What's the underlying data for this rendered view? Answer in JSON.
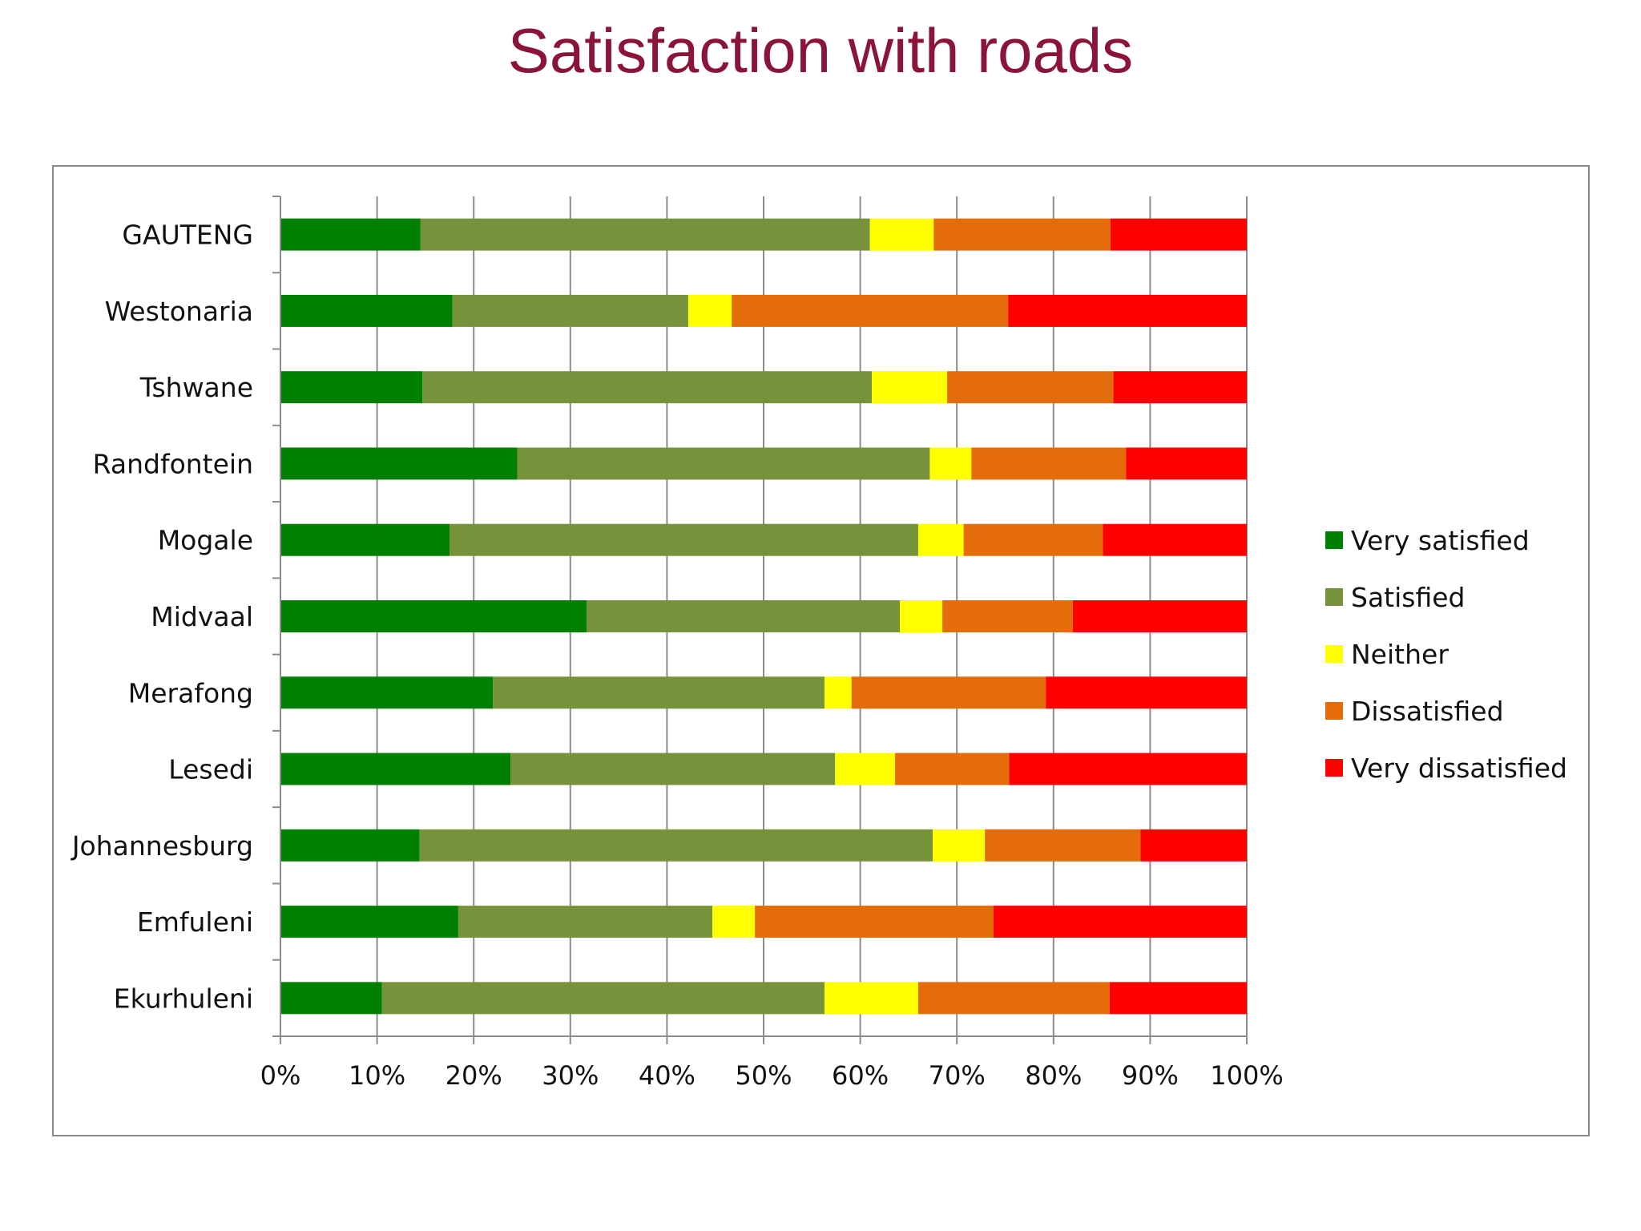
{
  "page": {
    "title": "Satisfaction with roads"
  },
  "chart_data": {
    "type": "bar",
    "orientation": "horizontal",
    "stacked": "percent",
    "title": "Satisfaction with roads",
    "xlabel": "",
    "ylabel": "",
    "xlim": [
      0,
      100
    ],
    "x_ticks": [
      "0%",
      "10%",
      "20%",
      "30%",
      "40%",
      "50%",
      "60%",
      "70%",
      "80%",
      "90%",
      "100%"
    ],
    "grid": "vertical",
    "legend_position": "right",
    "categories": [
      "GAUTENG",
      "Westonaria",
      "Tshwane",
      "Randfontein",
      "Mogale",
      "Midvaal",
      "Merafong",
      "Lesedi",
      "Johannesburg",
      "Emfuleni",
      "Ekurhuleni"
    ],
    "series": [
      {
        "name": "Very satisfied",
        "color": "#008000",
        "values": [
          14.5,
          17.8,
          14.7,
          24.5,
          17.5,
          31.7,
          22.0,
          23.8,
          14.4,
          18.4,
          10.5
        ]
      },
      {
        "name": "Satisfied",
        "color": "#76933c",
        "values": [
          46.5,
          24.4,
          46.5,
          42.7,
          48.5,
          32.4,
          34.3,
          33.6,
          53.1,
          26.3,
          45.8
        ]
      },
      {
        "name": "Neither",
        "color": "#ffff00",
        "values": [
          6.6,
          4.5,
          7.8,
          4.3,
          4.7,
          4.4,
          2.8,
          6.2,
          5.4,
          4.4,
          9.7
        ]
      },
      {
        "name": "Dissatisfied",
        "color": "#e46c0a",
        "values": [
          18.3,
          28.6,
          17.2,
          16.0,
          14.4,
          13.5,
          20.1,
          11.8,
          16.1,
          24.7,
          19.8
        ]
      },
      {
        "name": "Very dissatisfied",
        "color": "#ff0000",
        "values": [
          14.1,
          24.7,
          13.8,
          12.5,
          14.9,
          18.0,
          20.8,
          24.6,
          11.0,
          26.2,
          14.2
        ]
      }
    ]
  }
}
